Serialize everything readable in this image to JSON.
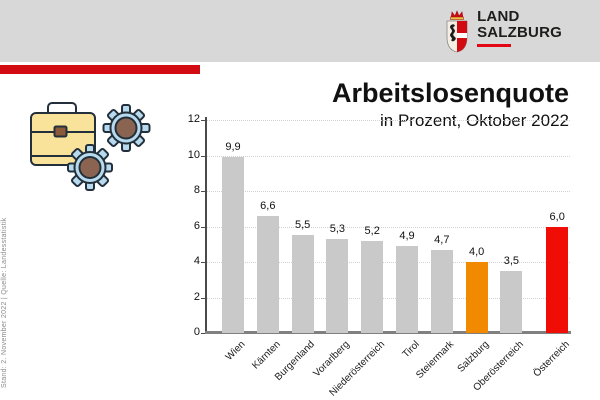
{
  "header": {
    "logo_line1": "LAND",
    "logo_line2": "SALZBURG"
  },
  "stamp": "Stand: 2. November 2022 | Quelle: Landesstatistik",
  "colors": {
    "header_bg": "#D8D8D8",
    "accent_red": "#D20A11",
    "logo_underline_red": "#E30613",
    "bar_gray": "#C9C9C9",
    "bar_orange": "#F18A00",
    "bar_red": "#F00D05"
  },
  "chart_data": {
    "type": "bar",
    "title": "Arbeitslosenquote",
    "subtitle": "in Prozent, Oktober 2022",
    "categories": [
      "Wien",
      "Kärnten",
      "Burgenland",
      "Vorarlberg",
      "Niederösterreich",
      "Tirol",
      "Steiermark",
      "Salzburg",
      "Oberösterreich",
      "Österreich"
    ],
    "values": [
      9.9,
      6.6,
      5.5,
      5.3,
      5.2,
      4.9,
      4.7,
      4.0,
      3.5,
      6.0
    ],
    "value_labels": [
      "9,9",
      "6,6",
      "5,5",
      "5,3",
      "5,2",
      "4,9",
      "4,7",
      "4,0",
      "3,5",
      "6,0"
    ],
    "bar_colors": [
      "#C9C9C9",
      "#C9C9C9",
      "#C9C9C9",
      "#C9C9C9",
      "#C9C9C9",
      "#C9C9C9",
      "#C9C9C9",
      "#F18A00",
      "#C9C9C9",
      "#F00D05"
    ],
    "highlight_bars": {
      "Salzburg": "#F18A00",
      "Österreich": "#F00D05"
    },
    "xlabel": "",
    "ylabel": "",
    "ylim": [
      0,
      12
    ],
    "yticks": [
      0,
      2,
      4,
      6,
      8,
      10,
      12
    ],
    "grid": true,
    "legend": false,
    "separated_last_category": true,
    "decimal_separator": ","
  }
}
